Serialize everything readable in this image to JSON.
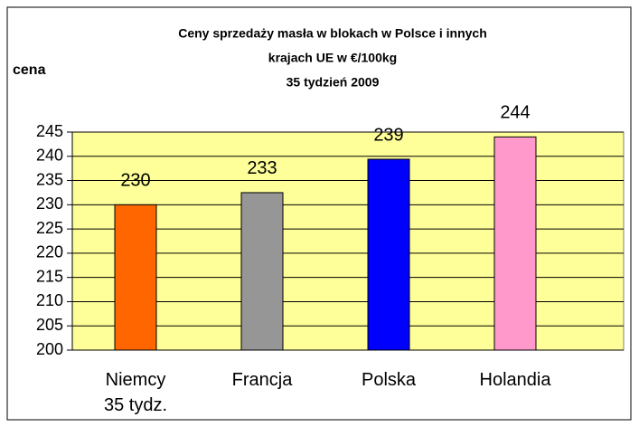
{
  "chart_data": {
    "type": "bar",
    "title": [
      "Ceny sprzedaży masła w blokach w Polsce i  innych",
      "krajach UE w €/100kg",
      "35 tydzień 2009"
    ],
    "y_label": "cena",
    "categories": [
      "Niemcy\n35 tydz.",
      "Francja",
      "Polska",
      "Holandia"
    ],
    "values": [
      230,
      232.5,
      239.4,
      244
    ],
    "value_labels": [
      "230",
      "233",
      "239",
      "244"
    ],
    "colors": [
      "#ff6600",
      "#969696",
      "#0000ff",
      "#ff99cc"
    ],
    "ylim": [
      200,
      245
    ],
    "yticks": [
      200,
      205,
      210,
      215,
      220,
      225,
      230,
      235,
      240,
      245
    ],
    "grid": true
  }
}
